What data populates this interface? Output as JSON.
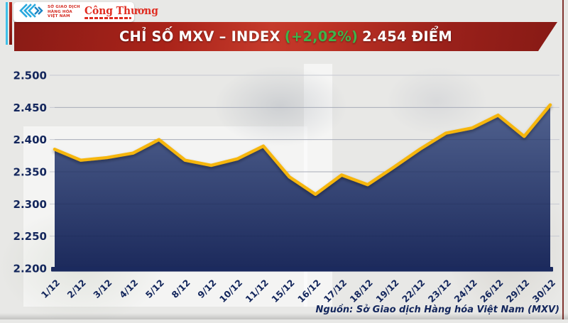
{
  "header": {
    "mxv_logo": {
      "org_line1": "SỞ GIAO DỊCH",
      "org_line2": "HÀNG HÓA",
      "org_line3": "VIỆT NAM"
    },
    "congthuong_logo": {
      "text": "Công Thương"
    },
    "banner": {
      "title_main": "CHỈ SỐ MXV – INDEX",
      "title_change": "(+2,02%)",
      "title_value": "2.454 ĐIỂM"
    }
  },
  "footer": {
    "source_text": "Nguồn: Sở Giao dịch Hàng hóa Việt Nam (MXV)"
  },
  "colors": {
    "banner_red": "#b3261d",
    "change_green": "#3db54a",
    "line_yellow": "#f6b60b",
    "fill_navy_top": "#51628f",
    "fill_navy_bottom": "#1c2a5c",
    "axis_text_navy": "#13265c",
    "logo_red": "#d42a20",
    "logo_blue": "#2aa9de"
  },
  "chart_data": {
    "type": "area",
    "title": "CHỈ SỐ MXV – INDEX (+2,02%) 2.454 ĐIỂM",
    "x": [
      "1/12",
      "2/12",
      "3/12",
      "4/12",
      "5/12",
      "8/12",
      "9/12",
      "10/12",
      "11/12",
      "15/12",
      "16/12",
      "17/12",
      "18/12",
      "19/12",
      "22/12",
      "23/12",
      "24/12",
      "26/12",
      "29/12",
      "30/12"
    ],
    "values": [
      2385,
      2368,
      2372,
      2379,
      2400,
      2368,
      2360,
      2370,
      2390,
      2342,
      2315,
      2345,
      2330,
      2357,
      2385,
      2410,
      2418,
      2438,
      2405,
      2454
    ],
    "xlabel": "",
    "ylabel": "",
    "ylim": [
      2200,
      2500
    ],
    "y_tick_labels": [
      "2.200",
      "2.250",
      "2.300",
      "2.350",
      "2.400",
      "2.450",
      "2.500"
    ],
    "y_tick_values": [
      2200,
      2250,
      2300,
      2350,
      2400,
      2450,
      2500
    ],
    "grid": true,
    "legend_position": "none",
    "line_color": "#f6b60b",
    "fill_top_color": "#51628f",
    "fill_bottom_color": "#1c2a5c",
    "axis_text_color": "#13265c"
  }
}
